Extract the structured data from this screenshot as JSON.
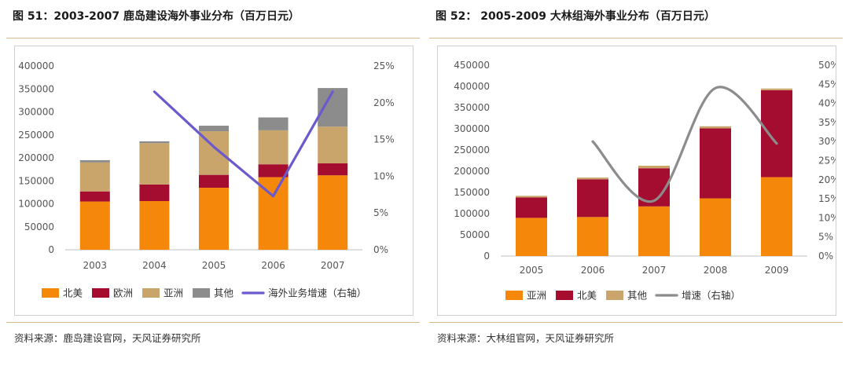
{
  "charts": [
    {
      "title": "图 51：2003-2007 鹿岛建设海外事业分布（百万日元）",
      "source": "资料来源：鹿岛建设官网，天风证券研究所",
      "chart_data": {
        "type": "bar",
        "stacked": true,
        "categories": [
          "2003",
          "2004",
          "2005",
          "2006",
          "2007"
        ],
        "series": [
          {
            "name": "北美",
            "color": "#f5870a",
            "values": [
              105000,
              106000,
              135000,
              158000,
              162000
            ]
          },
          {
            "name": "欧洲",
            "color": "#a50d30",
            "values": [
              22000,
              36000,
              28000,
              28000,
              26000
            ]
          },
          {
            "name": "亚洲",
            "color": "#c9a56c",
            "values": [
              63000,
              90000,
              95000,
              74000,
              80000
            ]
          },
          {
            "name": "其他",
            "color": "#8c8c8c",
            "values": [
              5000,
              4000,
              12000,
              28000,
              84000
            ]
          }
        ],
        "line": {
          "name": "海外业务增速（右轴）",
          "color": "#6a5acd",
          "axis": "right",
          "values": [
            null,
            21.5,
            14.0,
            7.3,
            21.5
          ]
        },
        "y_left": {
          "min": 0,
          "max": 400000,
          "step": 50000,
          "tick_labels": [
            "0",
            "50000",
            "100000",
            "150000",
            "200000",
            "250000",
            "300000",
            "350000",
            "400000"
          ]
        },
        "y_right": {
          "min": 0,
          "max": 25,
          "step": 5,
          "tick_labels": [
            "0%",
            "5%",
            "10%",
            "15%",
            "20%",
            "25%"
          ]
        },
        "line_style": "straight",
        "grid": false,
        "legend": "bottom"
      }
    },
    {
      "title": "图 52： 2005-2009 大林组海外事业分布（百万日元）",
      "source": "资料来源：大林组官网，天风证券研究所",
      "chart_data": {
        "type": "bar",
        "stacked": true,
        "categories": [
          "2005",
          "2006",
          "2007",
          "2008",
          "2009"
        ],
        "series": [
          {
            "name": "亚洲",
            "color": "#f5870a",
            "values": [
              90000,
              92000,
              117000,
              136000,
              186000
            ]
          },
          {
            "name": "北美",
            "color": "#a50d30",
            "values": [
              48000,
              89000,
              90000,
              165000,
              205000
            ]
          },
          {
            "name": "其他",
            "color": "#c9a56c",
            "values": [
              4000,
              4000,
              6000,
              5000,
              4000
            ]
          }
        ],
        "line": {
          "name": "增速（右轴）",
          "color": "#8c8c8c",
          "axis": "right",
          "values": [
            null,
            30.0,
            14.5,
            44.0,
            29.5
          ]
        },
        "y_left": {
          "min": 0,
          "max": 450000,
          "step": 50000,
          "tick_labels": [
            "0",
            "50000",
            "100000",
            "150000",
            "200000",
            "250000",
            "300000",
            "350000",
            "400000",
            "450000"
          ]
        },
        "y_right": {
          "min": 0,
          "max": 50,
          "step": 5,
          "tick_labels": [
            "0%",
            "5%",
            "10%",
            "15%",
            "20%",
            "25%",
            "30%",
            "35%",
            "40%",
            "45%",
            "50%"
          ]
        },
        "line_style": "smooth",
        "grid": false,
        "legend": "bottom"
      }
    }
  ]
}
